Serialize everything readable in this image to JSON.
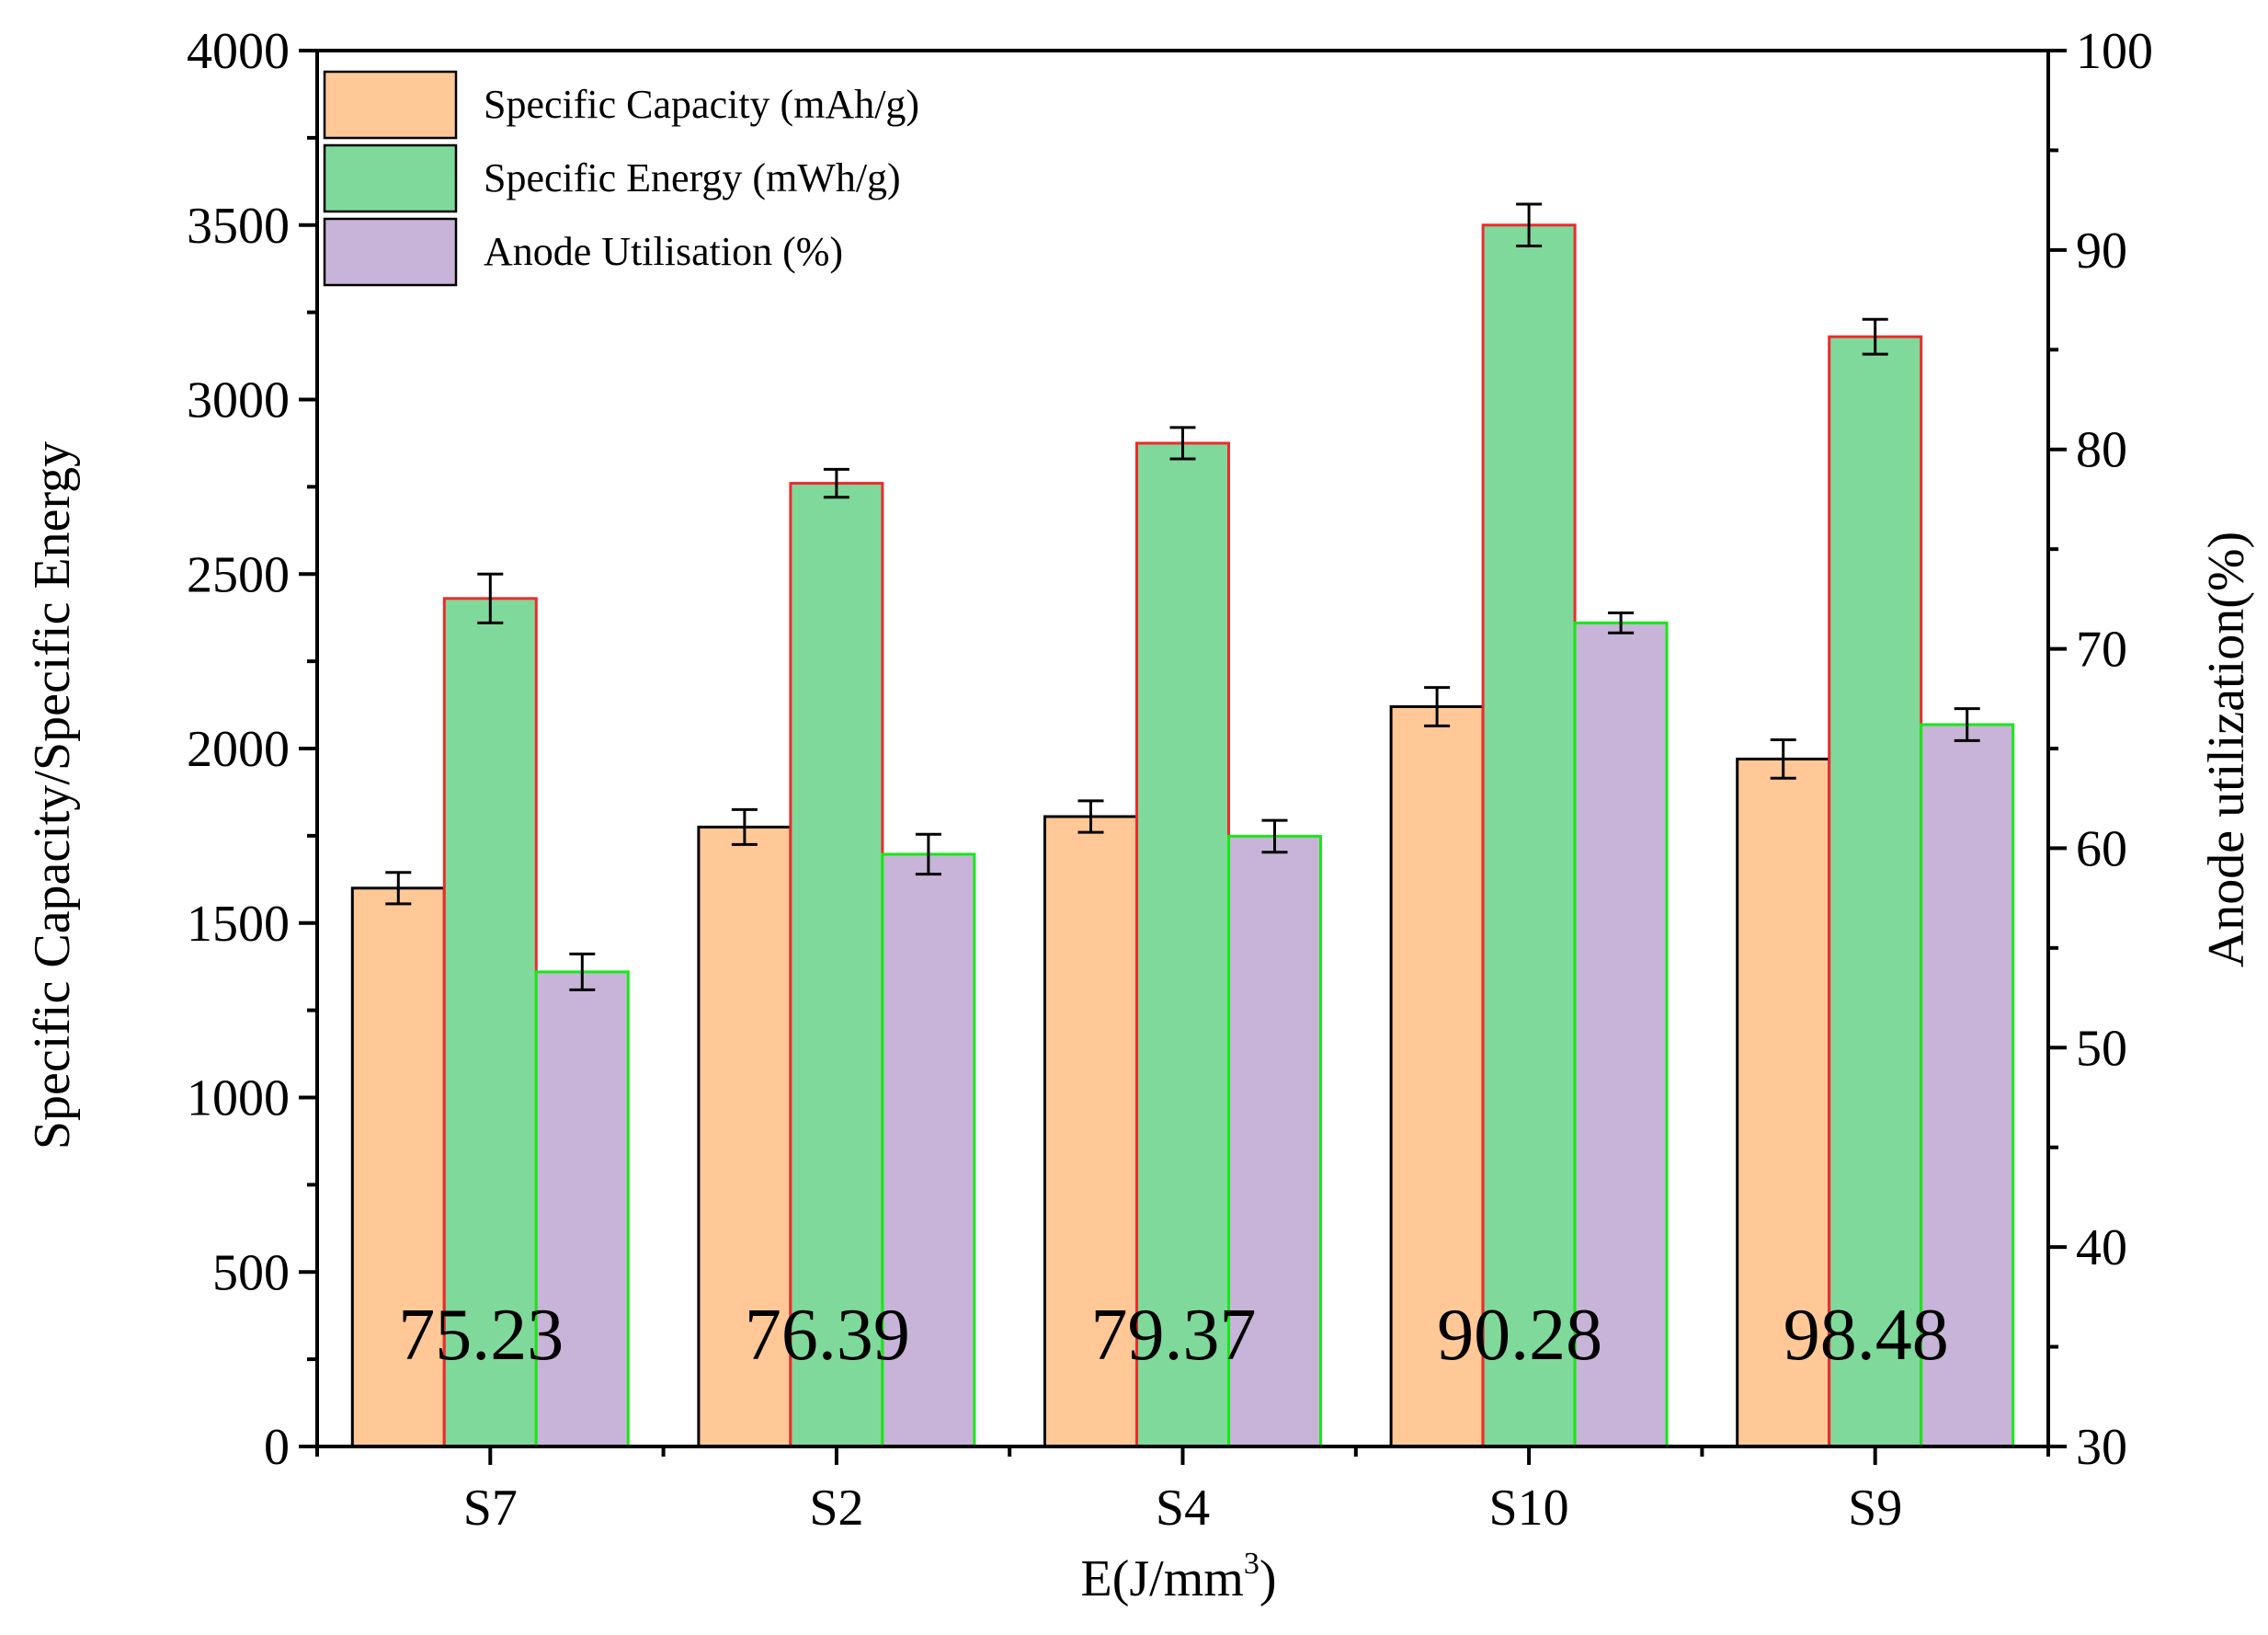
{
  "chart_data": {
    "type": "bar",
    "categories": [
      "S7",
      "S2",
      "S4",
      "S10",
      "S9"
    ],
    "category_annotations": [
      "75.23",
      "76.39",
      "79.37",
      "90.28",
      "98.48"
    ],
    "xlabel_main": "E(J/mm",
    "xlabel_sup": "3",
    "xlabel_close": ")",
    "ylabel_left": "Specific Capacity/Specific Energy",
    "ylabel_right": "Anode utilization(%)",
    "ylim_left": [
      0,
      4000
    ],
    "ylim_right": [
      30,
      100
    ],
    "yticks_left": [
      "0",
      "500",
      "1000",
      "1500",
      "2000",
      "2500",
      "3000",
      "3500",
      "4000"
    ],
    "yticks_right": [
      "30",
      "40",
      "50",
      "60",
      "70",
      "80",
      "90",
      "100"
    ],
    "legend_position": "top-left",
    "series": [
      {
        "name": "Specific Capacity (mAh/g)",
        "axis": "left",
        "color": "#FFC896",
        "edge_color": "#000000",
        "values": [
          1600,
          1775,
          1805,
          2120,
          1970
        ],
        "errors": [
          45,
          50,
          45,
          55,
          55
        ]
      },
      {
        "name": "Specific Energy   (mWh/g)",
        "axis": "left",
        "color": "#7FD99B",
        "edge_color": "#ED2B2B",
        "values": [
          2430,
          2760,
          2875,
          3500,
          3180
        ],
        "errors": [
          70,
          40,
          45,
          60,
          50
        ]
      },
      {
        "name": "Anode Utilisation (%)",
        "axis": "right",
        "color": "#C8B4D8",
        "edge_color": "#17E817",
        "values": [
          53.8,
          59.7,
          60.6,
          71.3,
          66.2
        ],
        "errors": [
          0.9,
          1.0,
          0.8,
          0.5,
          0.8
        ]
      }
    ]
  }
}
